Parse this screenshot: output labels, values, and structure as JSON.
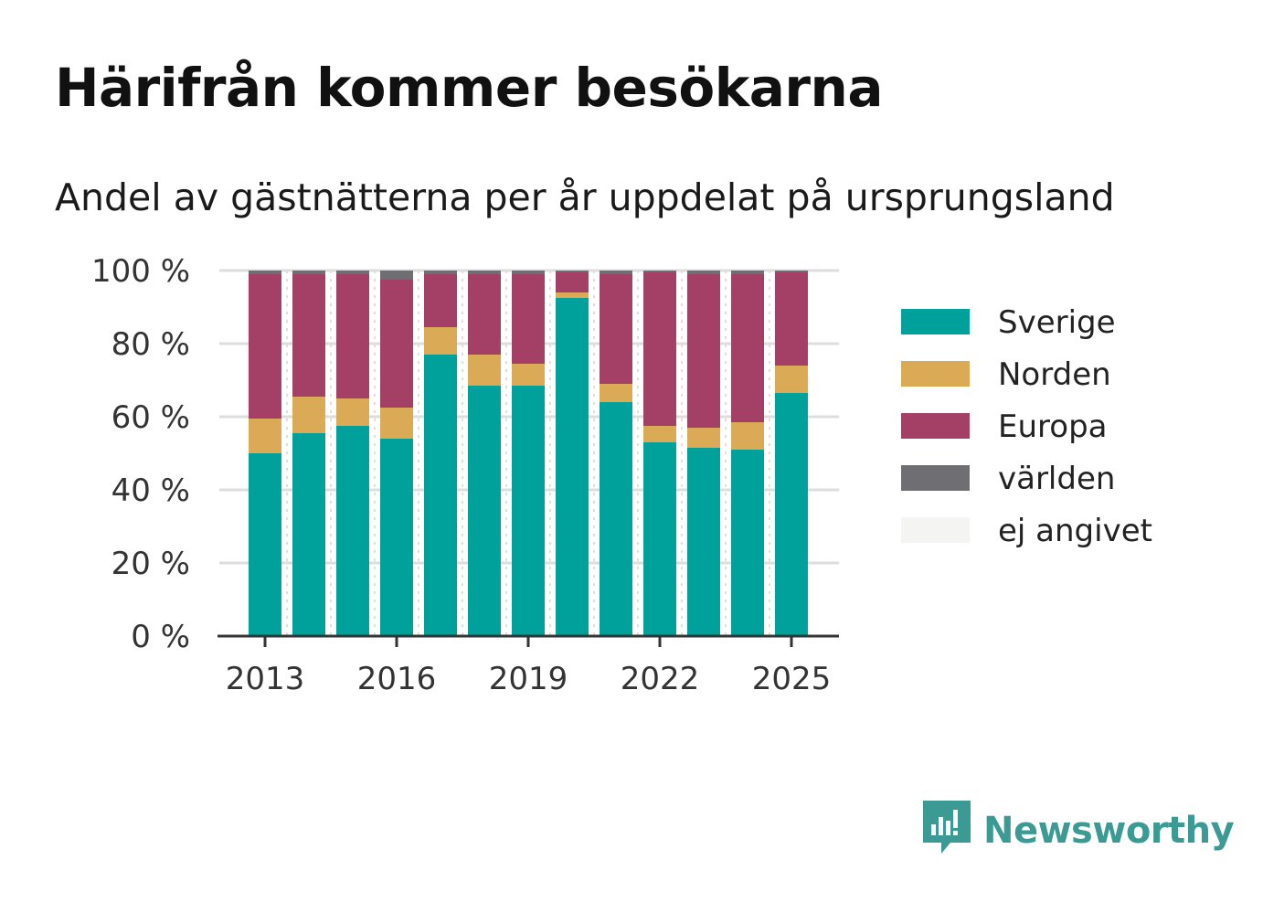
{
  "title": "Härifrån kommer besökarna",
  "subtitle": "Andel av gästnätterna per år uppdelat på ursprungsland",
  "brand": {
    "name": "Newsworthy",
    "icon": "newsworthy-logo-icon",
    "color": "#3b9a94"
  },
  "chart_data": {
    "type": "bar",
    "stacked": true,
    "categories": [
      "2013",
      "2014",
      "2015",
      "2016",
      "2017",
      "2018",
      "2019",
      "2020",
      "2021",
      "2022",
      "2023",
      "2024",
      "2025"
    ],
    "x_tick_labels": [
      "2013",
      "2016",
      "2019",
      "2022",
      "2025"
    ],
    "y_tick_labels": [
      "0 %",
      "20 %",
      "40 %",
      "60 %",
      "80 %",
      "100 %"
    ],
    "ylim": [
      0,
      100
    ],
    "grid": true,
    "legend_position": "right",
    "series": [
      {
        "name": "Sverige",
        "color": "#00a19a",
        "values": [
          50,
          55.5,
          57.5,
          54,
          77,
          68.5,
          68.5,
          92.5,
          64,
          53,
          51.5,
          51,
          66.5
        ]
      },
      {
        "name": "Norden",
        "color": "#dbaa57",
        "values": [
          9.5,
          10,
          7.5,
          8.5,
          7.5,
          8.5,
          6,
          1.5,
          5,
          4.5,
          5.5,
          7.5,
          7.5
        ]
      },
      {
        "name": "Europa",
        "color": "#a43f66",
        "values": [
          39.5,
          33.5,
          34,
          35,
          14.5,
          22,
          24.5,
          5.5,
          30,
          42,
          42,
          40.5,
          25.5
        ]
      },
      {
        "name": "världen",
        "color": "#6e6e73",
        "values": [
          1,
          1,
          1,
          2.5,
          1,
          1,
          1,
          0.5,
          1,
          0.5,
          1,
          1,
          0.5
        ]
      },
      {
        "name": "ej angivet",
        "color": "#f4f4f2",
        "values": [
          0,
          0,
          0,
          0,
          0,
          0,
          0,
          0,
          0,
          0,
          0,
          0,
          0
        ]
      }
    ]
  }
}
